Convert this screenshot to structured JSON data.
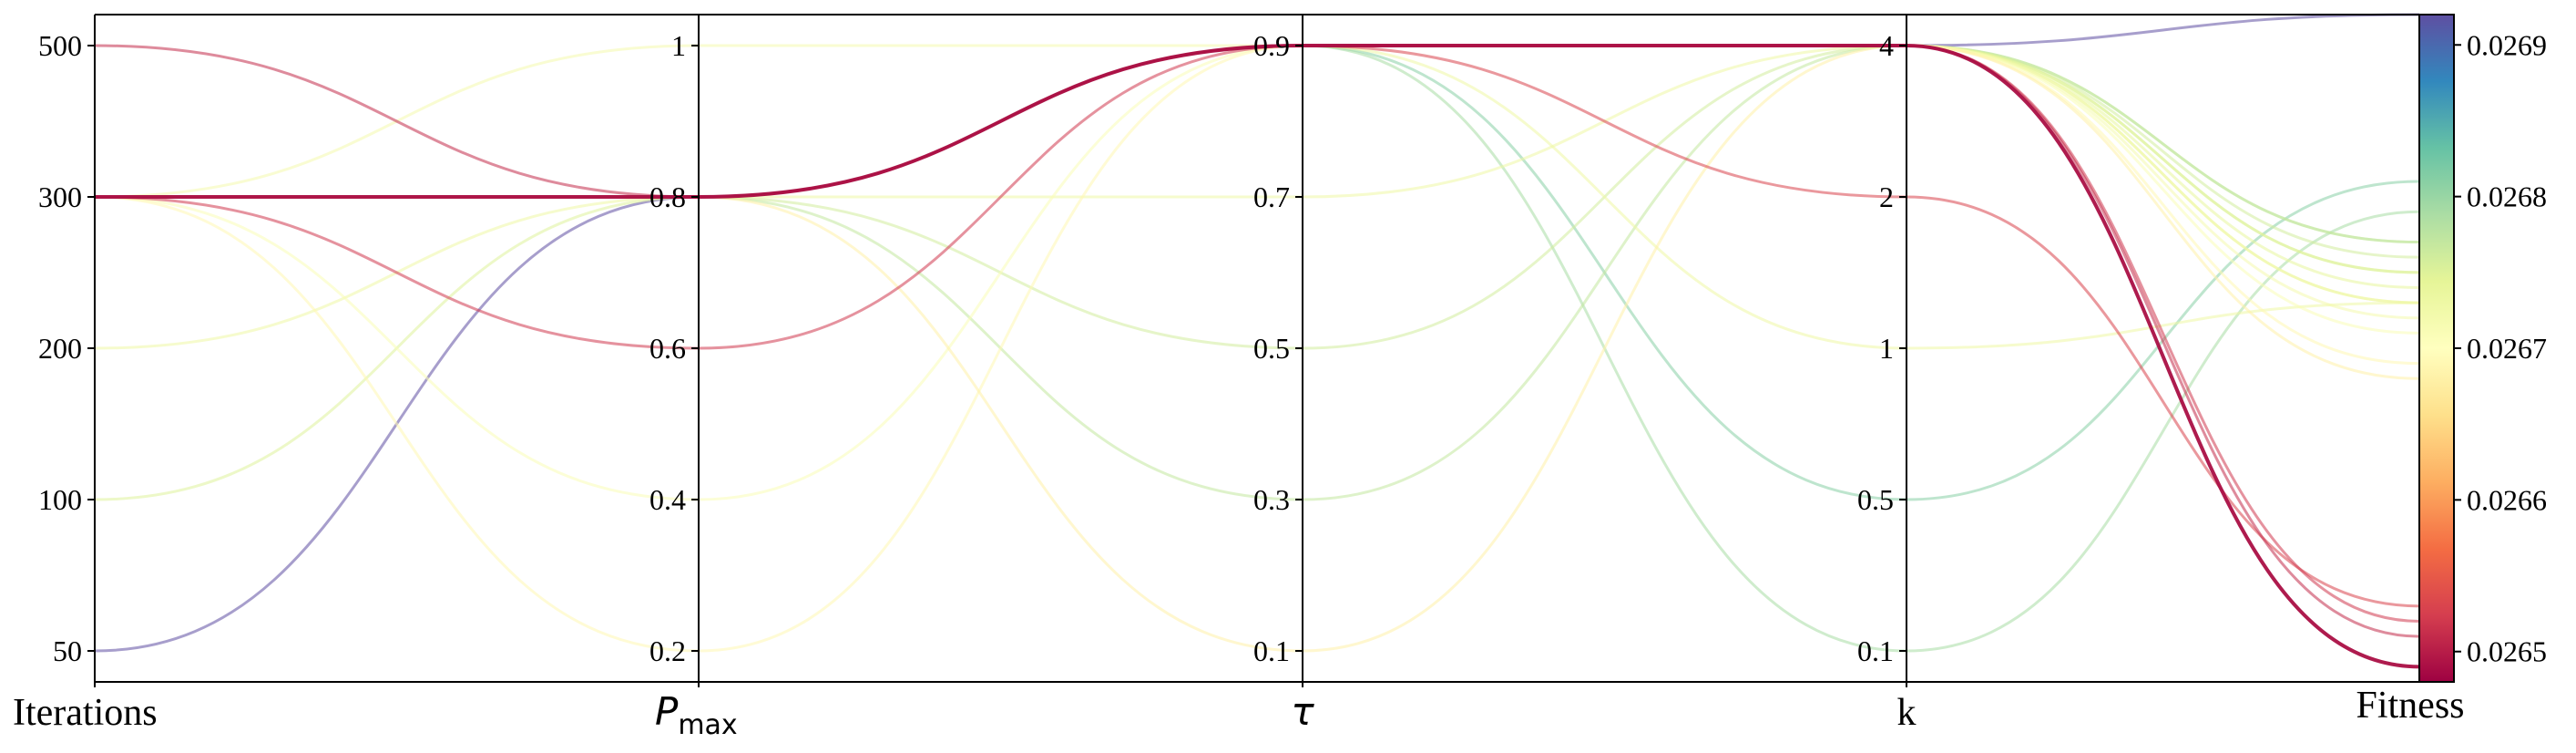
{
  "chart_data": {
    "type": "parallel_coordinates",
    "axes": [
      {
        "key": "iterations",
        "label": "Iterations",
        "ticks": [
          "50",
          "100",
          "200",
          "300",
          "500"
        ]
      },
      {
        "key": "pmax",
        "label": "P",
        "label_sub": "max",
        "ticks": [
          "0.2",
          "0.4",
          "0.6",
          "0.8",
          "1"
        ]
      },
      {
        "key": "tau",
        "label": "τ",
        "ticks": [
          "0.1",
          "0.3",
          "0.5",
          "0.7",
          "0.9"
        ]
      },
      {
        "key": "k",
        "label": "k",
        "ticks": [
          "0.1",
          "0.5",
          "1",
          "2",
          "4"
        ]
      },
      {
        "key": "fitness",
        "label": "Fitness",
        "range": [
          0.02648,
          0.02692
        ]
      }
    ],
    "colorbar": {
      "colormap": "Spectral",
      "range": [
        0.02648,
        0.02692
      ],
      "ticks": [
        "0.0265",
        "0.0266",
        "0.0267",
        "0.0268",
        "0.0269"
      ]
    },
    "series": [
      {
        "iterations": "50",
        "pmax": "0.8",
        "tau": "0.9",
        "k": "4",
        "fitness": 0.02692
      },
      {
        "iterations": "500",
        "pmax": "0.8",
        "tau": "0.9",
        "k": "4",
        "fitness": 0.02651
      },
      {
        "iterations": "300",
        "pmax": "0.6",
        "tau": "0.9",
        "k": "4",
        "fitness": 0.02652
      },
      {
        "iterations": "300",
        "pmax": "0.8",
        "tau": "0.9",
        "k": "4",
        "fitness": 0.02649
      },
      {
        "iterations": "300",
        "pmax": "0.8",
        "tau": "0.9",
        "k": "2",
        "fitness": 0.02653
      },
      {
        "iterations": "100",
        "pmax": "0.8",
        "tau": "0.9",
        "k": "4",
        "fitness": 0.02675
      },
      {
        "iterations": "300",
        "pmax": "0.8",
        "tau": "0.3",
        "k": "4",
        "fitness": 0.02677
      },
      {
        "iterations": "300",
        "pmax": "0.8",
        "tau": "0.9",
        "k": "0.5",
        "fitness": 0.02681
      },
      {
        "iterations": "300",
        "pmax": "0.8",
        "tau": "0.9",
        "k": "0.1",
        "fitness": 0.02679
      },
      {
        "iterations": "300",
        "pmax": "0.8",
        "tau": "0.5",
        "k": "4",
        "fitness": 0.02676
      },
      {
        "iterations": "300",
        "pmax": "0.8",
        "tau": "0.9",
        "k": "4",
        "fitness": 0.02677
      },
      {
        "iterations": "300",
        "pmax": "0.8",
        "tau": "0.9",
        "k": "4",
        "fitness": 0.02675
      },
      {
        "iterations": "300",
        "pmax": "0.8",
        "tau": "0.9",
        "k": "4",
        "fitness": 0.02674
      },
      {
        "iterations": "300",
        "pmax": "0.8",
        "tau": "0.7",
        "k": "4",
        "fitness": 0.02673
      },
      {
        "iterations": "200",
        "pmax": "0.8",
        "tau": "0.9",
        "k": "4",
        "fitness": 0.02673
      },
      {
        "iterations": "300",
        "pmax": "0.4",
        "tau": "0.9",
        "k": "4",
        "fitness": 0.02671
      },
      {
        "iterations": "300",
        "pmax": "0.2",
        "tau": "0.9",
        "k": "4",
        "fitness": 0.02669
      },
      {
        "iterations": "300",
        "pmax": "1",
        "tau": "0.9",
        "k": "4",
        "fitness": 0.02672
      },
      {
        "iterations": "300",
        "pmax": "0.8",
        "tau": "0.1",
        "k": "4",
        "fitness": 0.02668
      },
      {
        "iterations": "300",
        "pmax": "0.8",
        "tau": "0.9",
        "k": "1",
        "fitness": 0.02673
      }
    ]
  }
}
